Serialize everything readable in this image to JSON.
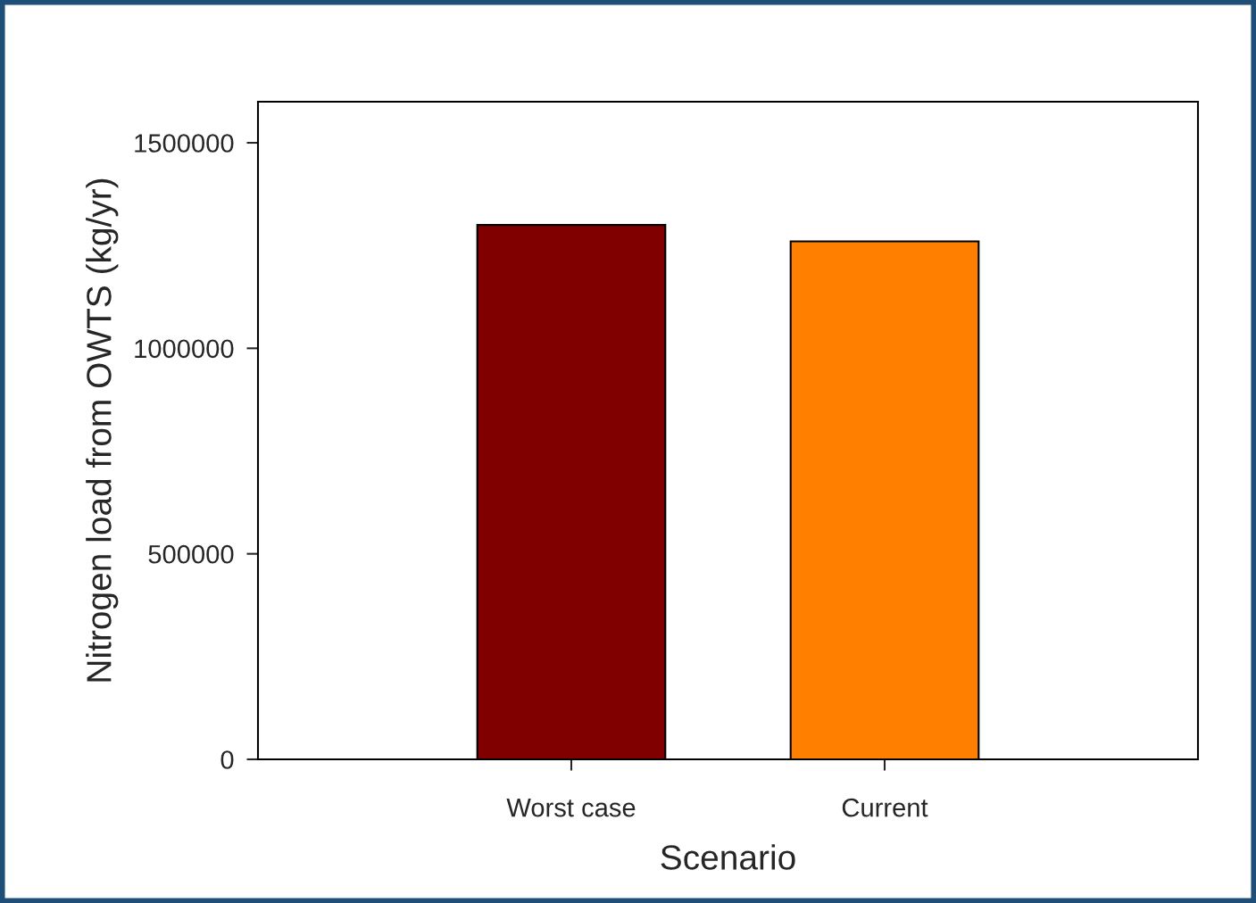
{
  "chart_data": {
    "type": "bar",
    "xlabel": "Scenario",
    "ylabel": "Nitrogen load from OWTS (kg/yr)",
    "categories": [
      "Worst case",
      "Current"
    ],
    "values": [
      1300000,
      1260000
    ],
    "colors": [
      "#800000",
      "#ff8000"
    ],
    "ylim": [
      0,
      1600000
    ],
    "yticks": [
      0,
      500000,
      1000000,
      1500000
    ],
    "grid": false,
    "legend": false
  }
}
